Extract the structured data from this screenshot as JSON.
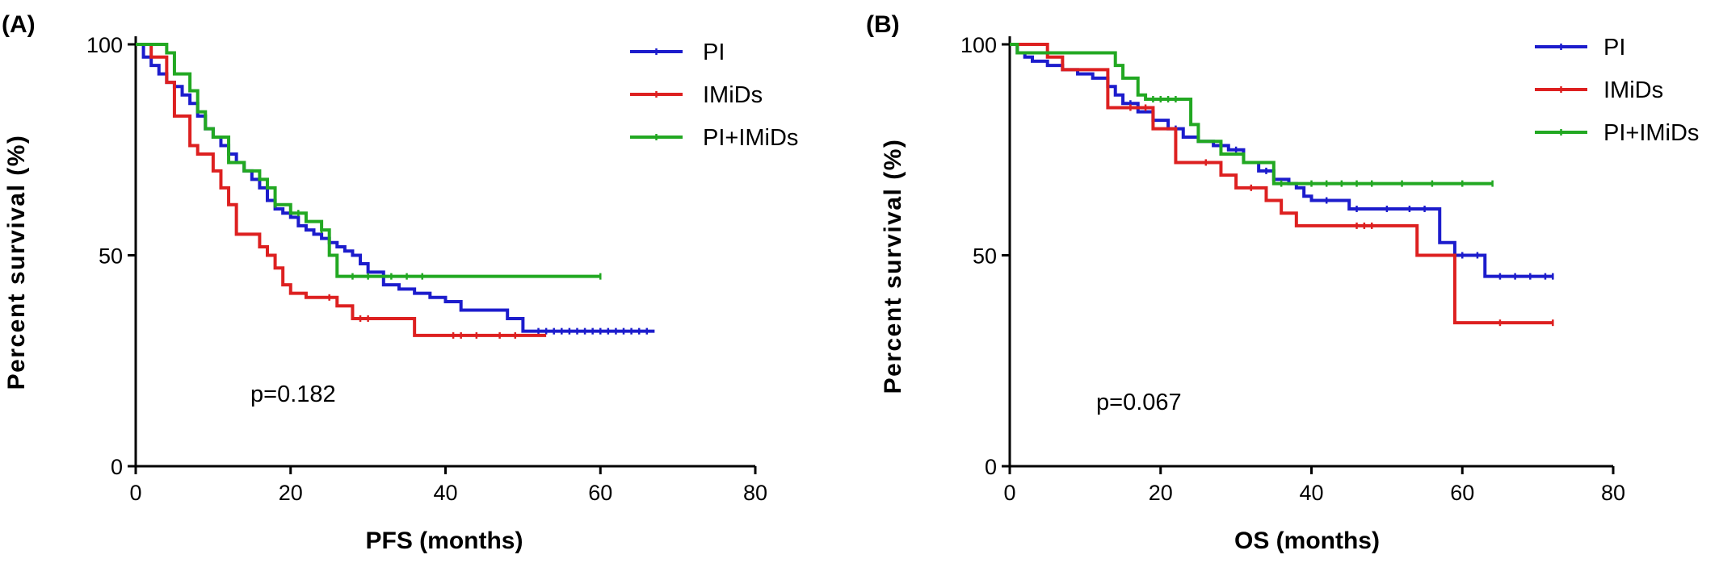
{
  "chart_data": [
    {
      "type": "line",
      "panel_label": "(A)",
      "xlabel": "PFS (months)",
      "ylabel": "Percent survival (%)",
      "xlim": [
        0,
        80
      ],
      "ylim": [
        0,
        100
      ],
      "xticks": [
        0,
        20,
        40,
        60,
        80
      ],
      "yticks": [
        0,
        50,
        100
      ],
      "annotation": "p=0.182",
      "legend_position": "top-right",
      "series": [
        {
          "name": "PI",
          "color": "#1c1ccc",
          "x": [
            0,
            1,
            2,
            3,
            4,
            5,
            6,
            7,
            8,
            9,
            10,
            11,
            12,
            13,
            14,
            15,
            16,
            17,
            18,
            19,
            20,
            21,
            22,
            23,
            24,
            25,
            26,
            27,
            28,
            29,
            30,
            32,
            34,
            36,
            38,
            40,
            42,
            44,
            48,
            50,
            67
          ],
          "y": [
            100,
            97,
            95,
            93,
            91,
            90,
            88,
            86,
            83,
            80,
            78,
            76,
            74,
            72,
            70,
            68,
            66,
            63,
            61,
            60,
            59,
            57,
            56,
            55,
            54,
            53,
            52,
            51,
            50,
            48,
            46,
            43,
            42,
            41,
            40,
            39,
            37,
            37,
            35,
            32,
            32
          ],
          "censor_x": [
            52,
            53,
            54,
            55,
            56,
            57,
            58,
            59,
            60,
            61,
            62,
            63,
            64,
            65,
            66
          ]
        },
        {
          "name": "IMiDs",
          "color": "#dd2020",
          "x": [
            0,
            2,
            4,
            5,
            7,
            8,
            10,
            11,
            12,
            13,
            14,
            15,
            16,
            17,
            18,
            19,
            20,
            22,
            24,
            26,
            28,
            36,
            40,
            48,
            53
          ],
          "y": [
            100,
            97,
            91,
            83,
            76,
            74,
            70,
            66,
            62,
            55,
            55,
            55,
            52,
            50,
            47,
            43,
            41,
            40,
            40,
            38,
            35,
            31,
            31,
            31,
            31
          ],
          "censor_x": [
            25,
            29,
            30,
            41,
            42,
            44,
            47,
            49
          ]
        },
        {
          "name": "PI+IMiDs",
          "color": "#22a822",
          "x": [
            0,
            3,
            4,
            5,
            7,
            8,
            9,
            10,
            12,
            14,
            16,
            17,
            18,
            20,
            22,
            24,
            25,
            26,
            60
          ],
          "y": [
            100,
            100,
            98,
            93,
            89,
            84,
            80,
            78,
            72,
            70,
            68,
            66,
            62,
            60,
            58,
            56,
            50,
            45,
            45
          ],
          "censor_x": [
            18,
            21,
            24,
            28,
            30,
            33,
            35,
            37,
            60
          ]
        }
      ]
    },
    {
      "type": "line",
      "panel_label": "(B)",
      "xlabel": "OS (months)",
      "ylabel": "Percent survival (%)",
      "xlim": [
        0,
        80
      ],
      "ylim": [
        0,
        100
      ],
      "xticks": [
        0,
        20,
        40,
        60,
        80
      ],
      "yticks": [
        0,
        50,
        100
      ],
      "annotation": "p=0.067",
      "legend_position": "top-right",
      "series": [
        {
          "name": "PI",
          "color": "#1c1ccc",
          "x": [
            0,
            1,
            2,
            3,
            5,
            7,
            9,
            11,
            13,
            14,
            15,
            17,
            19,
            21,
            23,
            25,
            27,
            29,
            31,
            33,
            35,
            37,
            38,
            39,
            40,
            45,
            57,
            59,
            63,
            72
          ],
          "y": [
            100,
            98,
            97,
            96,
            95,
            94,
            93,
            92,
            90,
            88,
            86,
            84,
            82,
            80,
            78,
            77,
            76,
            75,
            72,
            70,
            68,
            67,
            66,
            64,
            63,
            61,
            53,
            50,
            45,
            45
          ],
          "censor_x": [
            16,
            22,
            30,
            34,
            42,
            46,
            50,
            53,
            55,
            60,
            62,
            65,
            67,
            69,
            71,
            72
          ]
        },
        {
          "name": "IMiDs",
          "color": "#dd2020",
          "x": [
            0,
            5,
            7,
            13,
            15,
            19,
            22,
            26,
            28,
            30,
            34,
            36,
            38,
            54,
            59,
            72
          ],
          "y": [
            100,
            97,
            94,
            85,
            85,
            80,
            72,
            72,
            69,
            66,
            63,
            60,
            57,
            50,
            34,
            34
          ],
          "censor_x": [
            16,
            18,
            26,
            32,
            46,
            47,
            48,
            65,
            72
          ]
        },
        {
          "name": "PI+IMiDs",
          "color": "#22a822",
          "x": [
            0,
            1,
            13,
            14,
            15,
            17,
            18,
            24,
            25,
            28,
            31,
            35,
            64
          ],
          "y": [
            100,
            98,
            98,
            95,
            92,
            88,
            87,
            81,
            77,
            74,
            72,
            67,
            67
          ],
          "censor_x": [
            19,
            20,
            21,
            22,
            36,
            40,
            42,
            44,
            46,
            48,
            52,
            56,
            60,
            64
          ]
        }
      ]
    }
  ]
}
